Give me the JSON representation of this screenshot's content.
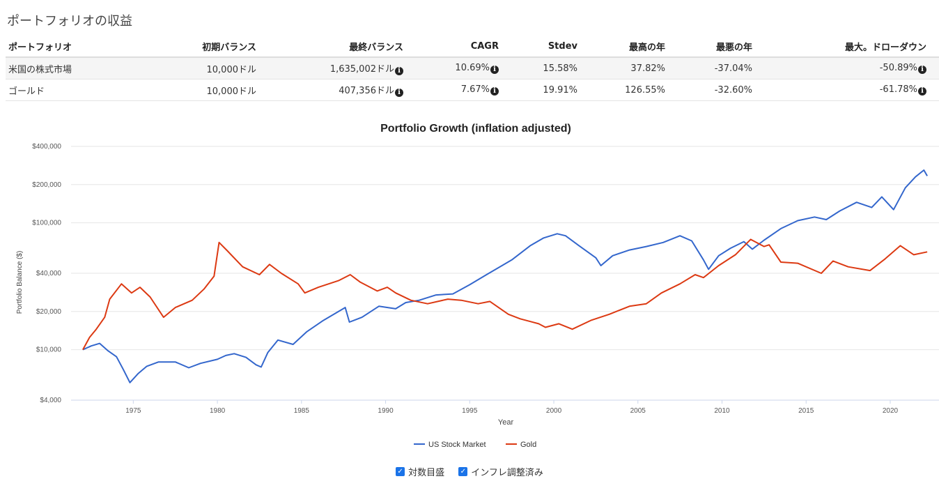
{
  "page": {
    "heading": "ポートフォリオの収益"
  },
  "table": {
    "headers": [
      "ポートフォリオ",
      "初期バランス",
      "最終バランス",
      "CAGR",
      "Stdev",
      "最高の年",
      "最悪の年",
      "最大。ドローダウン"
    ],
    "rows": [
      [
        "米国の株式市場",
        "10,000ドル",
        "1,635,002ドル",
        "10.69%",
        "15.58%",
        "37.82%",
        "-37.04%",
        "-50.89%"
      ],
      [
        "ゴールド",
        "10,000ドル",
        "407,356ドル",
        "7.67%",
        "19.91%",
        "126.55%",
        "-32.60%",
        "-61.78%"
      ]
    ]
  },
  "chart_data": {
    "type": "line",
    "title": "Portfolio Growth (inflation adjusted)",
    "xlabel": "Year",
    "ylabel": "Portfolio Balance ($)",
    "yscale": "log",
    "ylim": [
      4000,
      400000
    ],
    "xlim": [
      1971.3,
      2022.9
    ],
    "yticks": [
      4000,
      10000,
      20000,
      40000,
      100000,
      200000,
      400000
    ],
    "ytick_labels": [
      "$4,000",
      "$10,000",
      "$20,000",
      "$40,000",
      "$100,000",
      "$200,000",
      "$400,000"
    ],
    "xticks": [
      1975,
      1980,
      1985,
      1990,
      1995,
      2000,
      2005,
      2010,
      2015,
      2020
    ],
    "grid": true,
    "legend": "bottom",
    "series": [
      {
        "name": "US Stock Market",
        "color": "#3366cc",
        "points": [
          [
            1972,
            10000
          ],
          [
            1972.5,
            10700
          ],
          [
            1973,
            11200
          ],
          [
            1973.5,
            9800
          ],
          [
            1974,
            8800
          ],
          [
            1974.4,
            7000
          ],
          [
            1974.8,
            5500
          ],
          [
            1975.3,
            6500
          ],
          [
            1975.8,
            7400
          ],
          [
            1976.5,
            8000
          ],
          [
            1977.5,
            8000
          ],
          [
            1978.3,
            7200
          ],
          [
            1979,
            7800
          ],
          [
            1980,
            8400
          ],
          [
            1980.5,
            9000
          ],
          [
            1981,
            9300
          ],
          [
            1981.7,
            8700
          ],
          [
            1982.3,
            7600
          ],
          [
            1982.6,
            7300
          ],
          [
            1983,
            9500
          ],
          [
            1983.6,
            11900
          ],
          [
            1984.5,
            11000
          ],
          [
            1985.3,
            13800
          ],
          [
            1986.3,
            17000
          ],
          [
            1987.6,
            21500
          ],
          [
            1987.85,
            16500
          ],
          [
            1988.6,
            18000
          ],
          [
            1989.6,
            22000
          ],
          [
            1990.6,
            21000
          ],
          [
            1991.2,
            23500
          ],
          [
            1992,
            24500
          ],
          [
            1993,
            27000
          ],
          [
            1994,
            27500
          ],
          [
            1995,
            32500
          ],
          [
            1996,
            39000
          ],
          [
            1997.5,
            51000
          ],
          [
            1998.6,
            66000
          ],
          [
            1999.4,
            76000
          ],
          [
            2000.2,
            82000
          ],
          [
            2000.7,
            79000
          ],
          [
            2001.5,
            66000
          ],
          [
            2002.5,
            53000
          ],
          [
            2002.8,
            46000
          ],
          [
            2003.5,
            55000
          ],
          [
            2004.5,
            61000
          ],
          [
            2005.5,
            65000
          ],
          [
            2006.5,
            70000
          ],
          [
            2007.5,
            79000
          ],
          [
            2008.2,
            72000
          ],
          [
            2008.9,
            51000
          ],
          [
            2009.2,
            43000
          ],
          [
            2009.8,
            55000
          ],
          [
            2010.5,
            63000
          ],
          [
            2011.3,
            71000
          ],
          [
            2011.8,
            62000
          ],
          [
            2012.5,
            73000
          ],
          [
            2013.5,
            90000
          ],
          [
            2014.5,
            104000
          ],
          [
            2015.5,
            111000
          ],
          [
            2016.2,
            106000
          ],
          [
            2017,
            124000
          ],
          [
            2018,
            145000
          ],
          [
            2018.9,
            132000
          ],
          [
            2019.5,
            160000
          ],
          [
            2020.2,
            127000
          ],
          [
            2020.9,
            189000
          ],
          [
            2021.5,
            230000
          ],
          [
            2022.0,
            260000
          ],
          [
            2022.2,
            234000
          ]
        ]
      },
      {
        "name": "Gold",
        "color": "#dc3912",
        "points": [
          [
            1972,
            10000
          ],
          [
            1972.4,
            12500
          ],
          [
            1972.8,
            14500
          ],
          [
            1973.3,
            18000
          ],
          [
            1973.6,
            25000
          ],
          [
            1974.3,
            33000
          ],
          [
            1974.9,
            28000
          ],
          [
            1975.4,
            31000
          ],
          [
            1976.0,
            26000
          ],
          [
            1976.8,
            18000
          ],
          [
            1977.5,
            21500
          ],
          [
            1978.5,
            24500
          ],
          [
            1979.2,
            30000
          ],
          [
            1979.8,
            38000
          ],
          [
            1980.1,
            70000
          ],
          [
            1980.6,
            60000
          ],
          [
            1981.5,
            45000
          ],
          [
            1982.5,
            39000
          ],
          [
            1983.1,
            47000
          ],
          [
            1983.8,
            40000
          ],
          [
            1984.8,
            33000
          ],
          [
            1985.2,
            28000
          ],
          [
            1986,
            31000
          ],
          [
            1987.2,
            35000
          ],
          [
            1987.9,
            39000
          ],
          [
            1988.5,
            34000
          ],
          [
            1989.5,
            29000
          ],
          [
            1990.1,
            31000
          ],
          [
            1990.6,
            28000
          ],
          [
            1991.5,
            24500
          ],
          [
            1992.5,
            23000
          ],
          [
            1993.7,
            25000
          ],
          [
            1994.5,
            24500
          ],
          [
            1995.5,
            23000
          ],
          [
            1996.2,
            24000
          ],
          [
            1997.3,
            19000
          ],
          [
            1998,
            17500
          ],
          [
            1999.1,
            16000
          ],
          [
            1999.5,
            15000
          ],
          [
            2000.3,
            16000
          ],
          [
            2001.1,
            14500
          ],
          [
            2002.2,
            17000
          ],
          [
            2003.3,
            19000
          ],
          [
            2004.5,
            22000
          ],
          [
            2005.5,
            23000
          ],
          [
            2006.4,
            28000
          ],
          [
            2007.5,
            33000
          ],
          [
            2008.4,
            39000
          ],
          [
            2008.9,
            37000
          ],
          [
            2009.8,
            46000
          ],
          [
            2010.8,
            56000
          ],
          [
            2011.7,
            74000
          ],
          [
            2012.5,
            65000
          ],
          [
            2012.8,
            67000
          ],
          [
            2013.5,
            49000
          ],
          [
            2014.5,
            48000
          ],
          [
            2015.9,
            40000
          ],
          [
            2016.6,
            50000
          ],
          [
            2017.5,
            45000
          ],
          [
            2018.8,
            42000
          ],
          [
            2019.7,
            52000
          ],
          [
            2020.6,
            66000
          ],
          [
            2021.4,
            56000
          ],
          [
            2022.2,
            59000
          ]
        ]
      }
    ]
  },
  "controls": {
    "log_scale_label": "対数目盛",
    "inflation_label": "インフレ調整済み"
  }
}
